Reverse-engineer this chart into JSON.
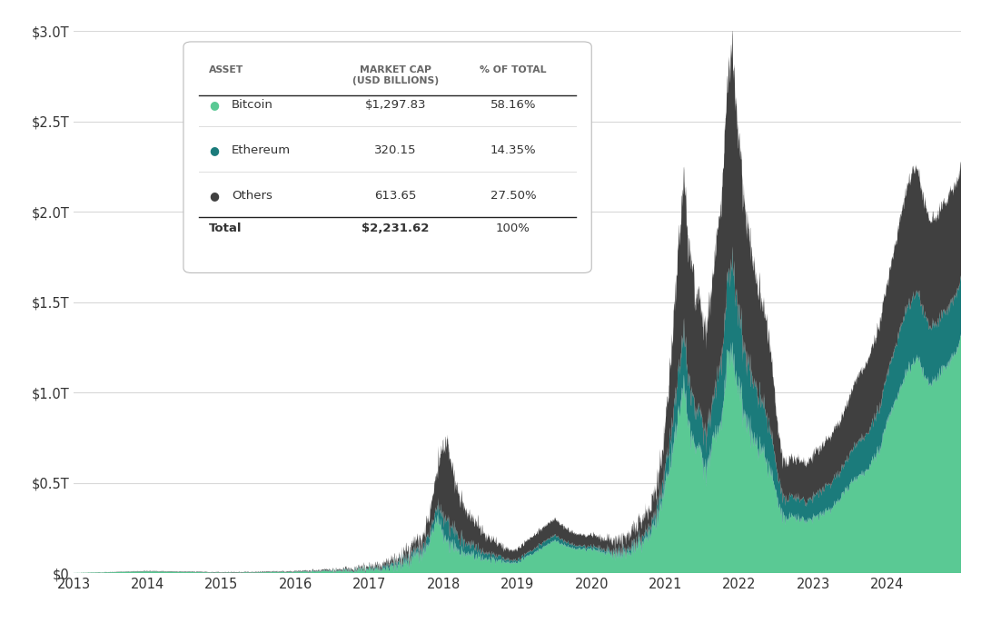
{
  "bitcoin_color": "#5ac994",
  "ethereum_color": "#1b7b7b",
  "others_color": "#404040",
  "background_color": "#ffffff",
  "grid_color": "#d8d8d8",
  "ylim": [
    0,
    3.0
  ],
  "ytick_labels": [
    "$0",
    "$0.5T",
    "$1.0T",
    "$1.5T",
    "$2.0T",
    "$2.5T",
    "$3.0T"
  ],
  "xtick_labels": [
    "2013",
    "2014",
    "2015",
    "2016",
    "2017",
    "2018",
    "2019",
    "2020",
    "2021",
    "2022",
    "2023",
    "2024"
  ],
  "rows": [
    {
      "name": "Bitcoin",
      "color": "#5ac994",
      "mktcap": "$1,297.83",
      "pct": "58.16%"
    },
    {
      "name": "Ethereum",
      "color": "#1b7b7b",
      "mktcap": "320.15",
      "pct": "14.35%"
    },
    {
      "name": "Others",
      "color": "#404040",
      "mktcap": "613.65",
      "pct": "27.50%"
    }
  ],
  "total_mktcap": "$2,231.62",
  "total_pct": "100%"
}
